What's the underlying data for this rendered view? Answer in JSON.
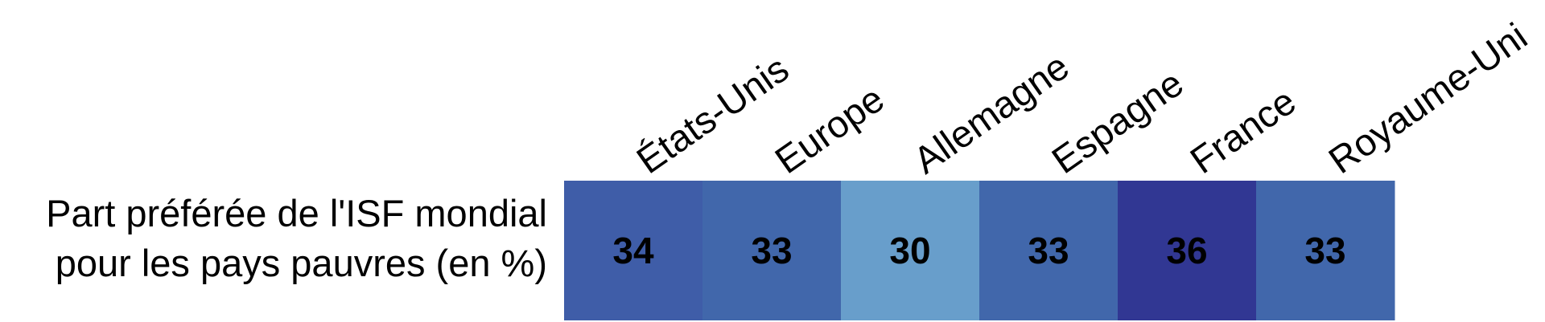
{
  "chart_data": {
    "type": "heatmap",
    "row_label": [
      "Part préférée de l'ISF mondial",
      "pour les pays pauvres (en %)"
    ],
    "columns": [
      "États-Unis",
      "Europe",
      "Allemagne",
      "Espagne",
      "France",
      "Royaume-Uni"
    ],
    "values": [
      34,
      33,
      30,
      33,
      36,
      33
    ],
    "colors": {
      "30": "#689ecb",
      "33": "#4167ab",
      "34": "#3f5da8",
      "36": "#313793"
    }
  }
}
